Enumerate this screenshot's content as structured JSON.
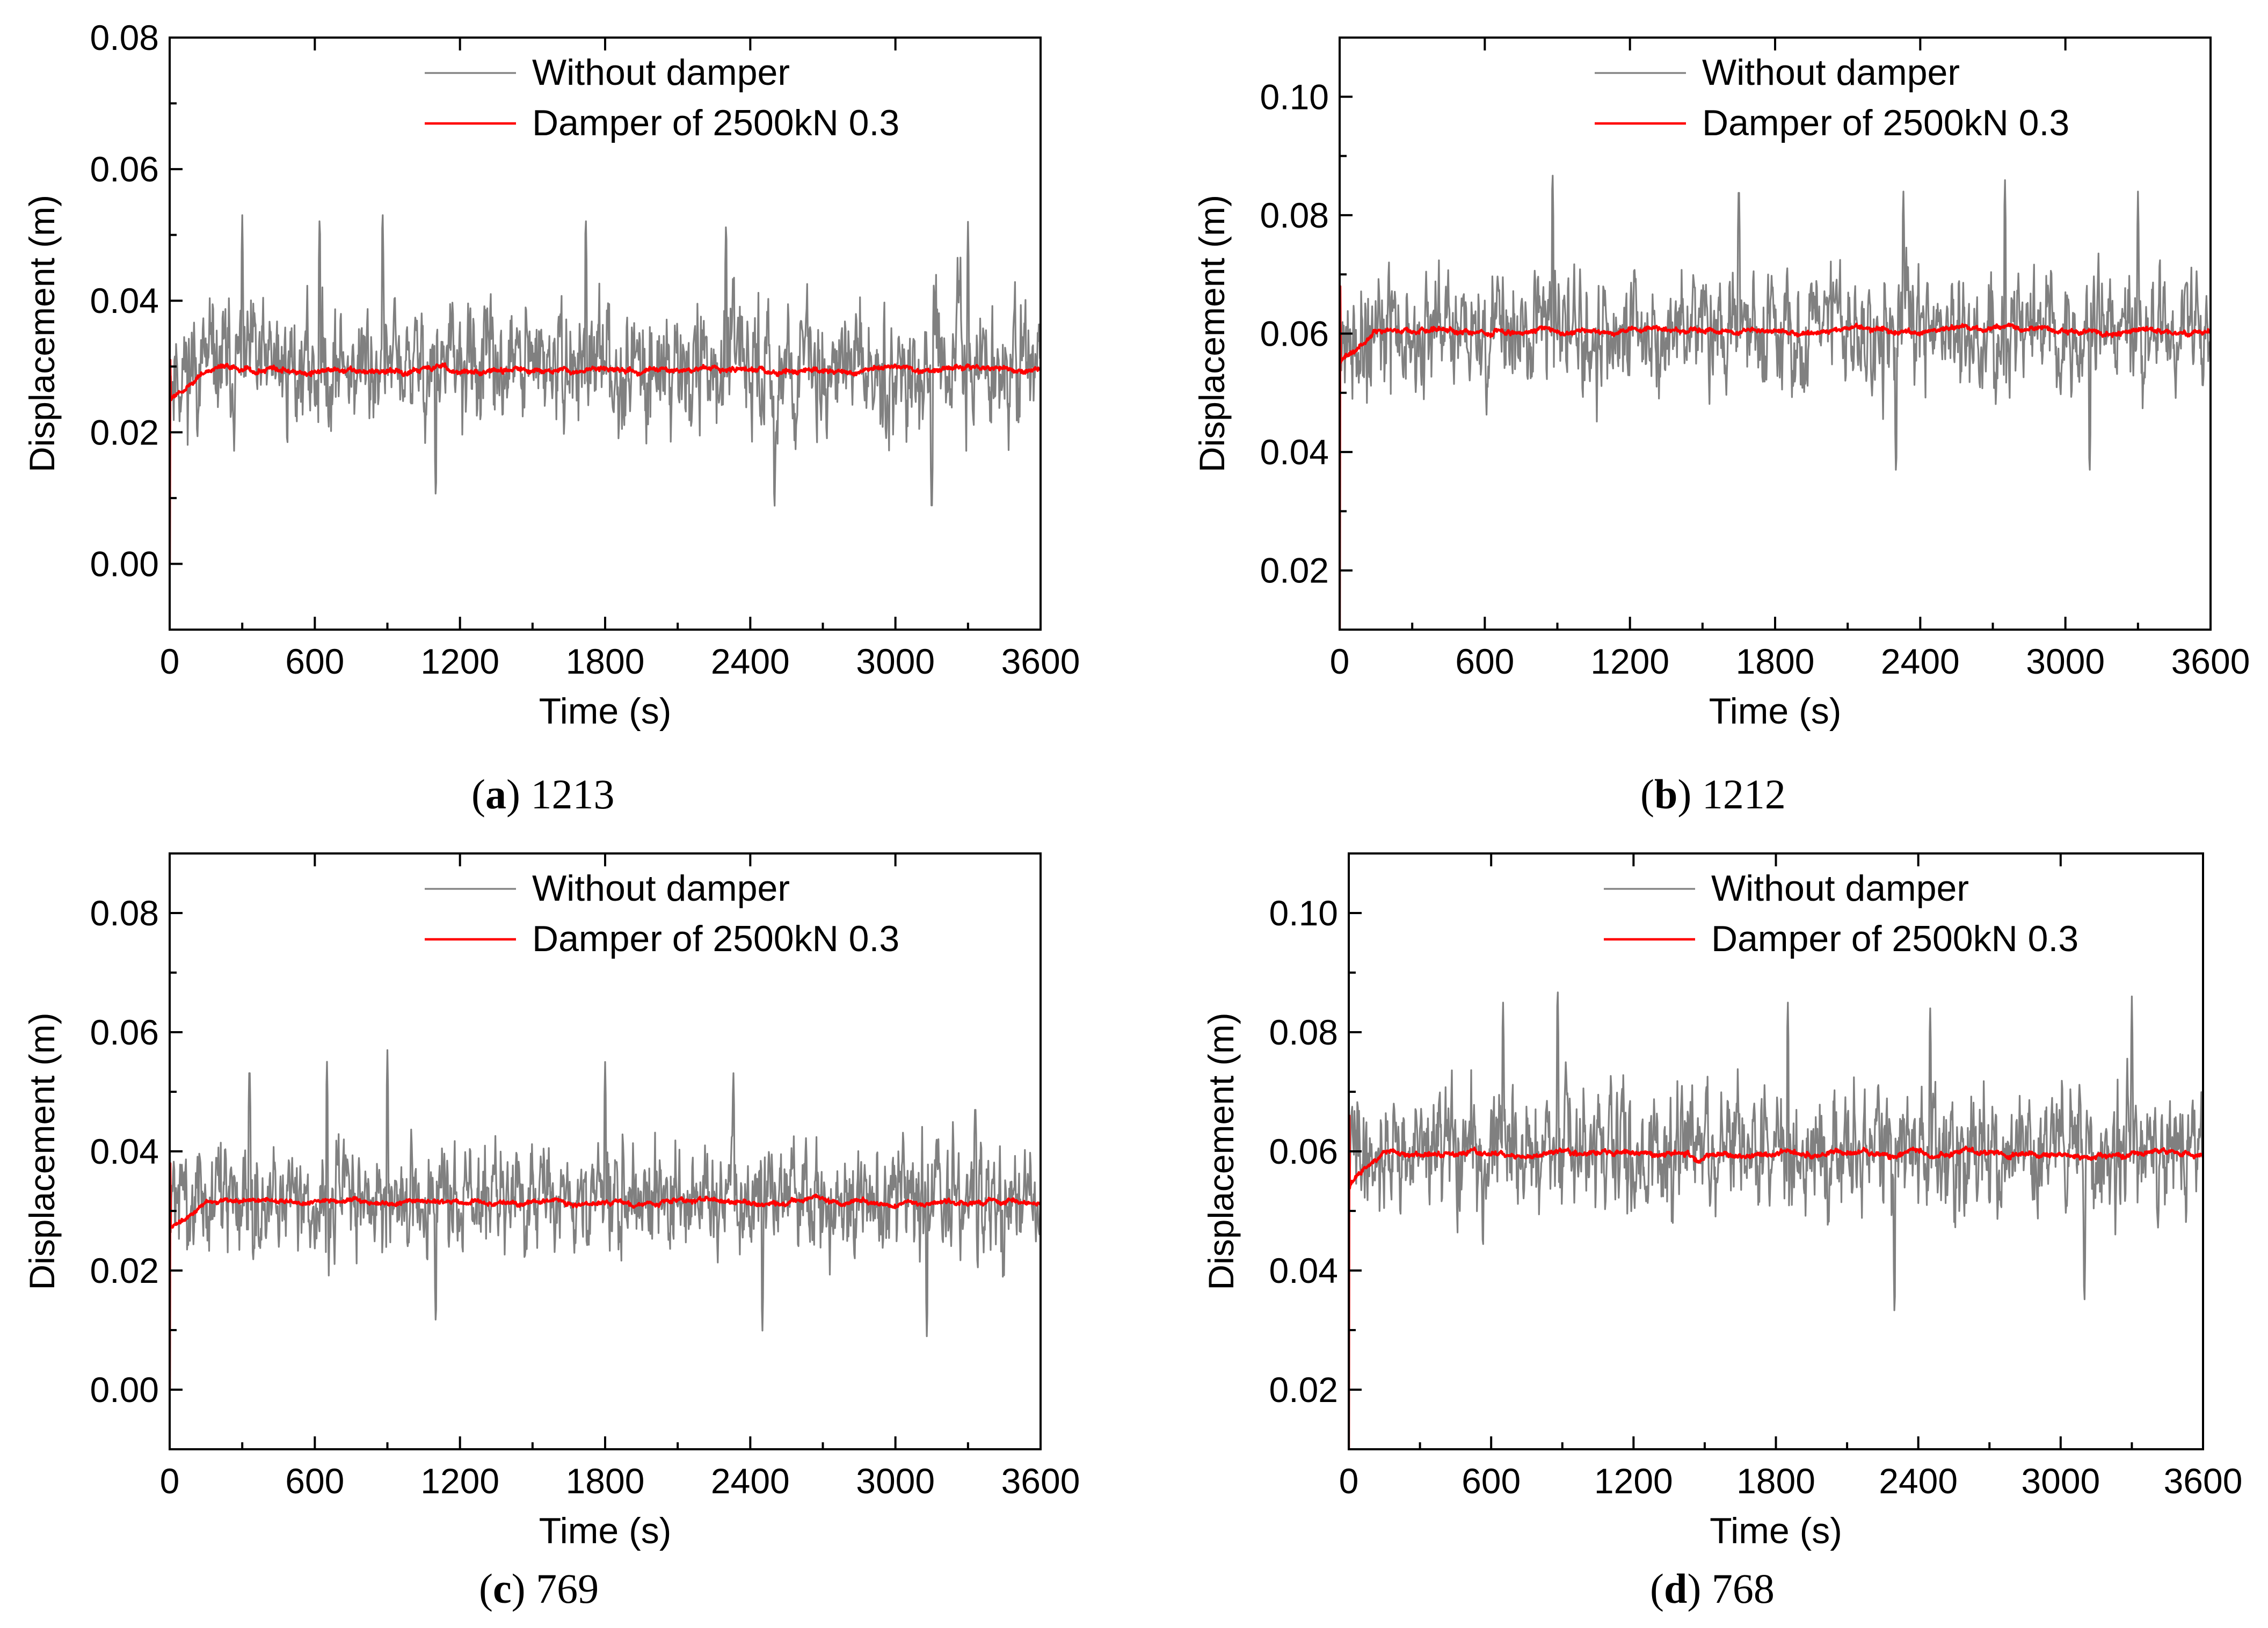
{
  "chart_data": [
    {
      "type": "line",
      "caption": {
        "letter": "a",
        "label": "1213"
      },
      "xlabel": "Time (s)",
      "ylabel": "Displacement (m)",
      "xlim": [
        0,
        3600
      ],
      "ylim": [
        -0.01,
        0.08
      ],
      "xticks": [
        0,
        600,
        1200,
        1800,
        2400,
        3000,
        3600
      ],
      "yticks": [
        "0.00",
        "0.02",
        "0.04",
        "0.06",
        "0.08"
      ],
      "legend_position": "top-center",
      "series": [
        {
          "name": "Without damper",
          "color": "#808080",
          "mean": 0.03,
          "amplitude": 0.012,
          "peaks": [
            [
              300,
              0.053
            ],
            [
              620,
              0.054
            ],
            [
              880,
              0.055
            ],
            [
              1100,
              0.009
            ],
            [
              1720,
              0.054
            ],
            [
              2300,
              0.053
            ],
            [
              2500,
              0.007
            ],
            [
              3150,
              0.006
            ],
            [
              3300,
              0.052
            ]
          ],
          "seed": 11,
          "startValue": 0.0
        },
        {
          "name": "Damper of 2500kN 0.3",
          "color": "#ff0000",
          "mean": 0.0295,
          "amplitude": 0.0012,
          "startValue": 0.0,
          "spikeValue": 0.031,
          "settleValue": 0.025,
          "seed": 12
        }
      ]
    },
    {
      "type": "line",
      "caption": {
        "letter": "b",
        "label": "1212"
      },
      "xlabel": "Time (s)",
      "ylabel": "Displacement (m)",
      "xlim": [
        0,
        3600
      ],
      "ylim": [
        0.01,
        0.11
      ],
      "xticks": [
        0,
        600,
        1200,
        1800,
        2400,
        3000,
        3600
      ],
      "yticks": [
        "0.02",
        "0.04",
        "0.06",
        "0.08",
        "0.10"
      ],
      "legend_position": "top-center",
      "series": [
        {
          "name": "Without damper",
          "color": "#808080",
          "mean": 0.06,
          "amplitude": 0.013,
          "peaks": [
            [
              880,
              0.089
            ],
            [
              1650,
              0.087
            ],
            [
              2300,
              0.035
            ],
            [
              2330,
              0.085
            ],
            [
              2750,
              0.087
            ],
            [
              3100,
              0.035
            ],
            [
              3300,
              0.084
            ]
          ],
          "seed": 21,
          "startValue": 0.01
        },
        {
          "name": "Damper of 2500kN 0.3",
          "color": "#ff0000",
          "mean": 0.0605,
          "amplitude": 0.0013,
          "startValue": 0.01,
          "spikeValue": 0.068,
          "settleValue": 0.055,
          "seed": 22
        }
      ]
    },
    {
      "type": "line",
      "caption": {
        "letter": "c",
        "label": "769"
      },
      "xlabel": "Time (s)",
      "ylabel": "Displacement (m)",
      "xlim": [
        0,
        3600
      ],
      "ylim": [
        -0.01,
        0.09
      ],
      "xticks": [
        0,
        600,
        1200,
        1800,
        2400,
        3000,
        3600
      ],
      "yticks": [
        "0.00",
        "0.02",
        "0.04",
        "0.06",
        "0.08"
      ],
      "legend_position": "top-center",
      "series": [
        {
          "name": "Without damper",
          "color": "#808080",
          "mean": 0.032,
          "amplitude": 0.012,
          "peaks": [
            [
              330,
              0.056
            ],
            [
              650,
              0.056
            ],
            [
              900,
              0.057
            ],
            [
              1100,
              0.01
            ],
            [
              1800,
              0.055
            ],
            [
              2330,
              0.054
            ],
            [
              2450,
              0.009
            ],
            [
              3130,
              0.008
            ],
            [
              3330,
              0.049
            ]
          ],
          "seed": 31,
          "startValue": 0.0
        },
        {
          "name": "Damper of 2500kN 0.3",
          "color": "#ff0000",
          "mean": 0.0315,
          "amplitude": 0.0012,
          "startValue": 0.0,
          "spikeValue": 0.038,
          "settleValue": 0.027,
          "seed": 32
        }
      ]
    },
    {
      "type": "line",
      "caption": {
        "letter": "d",
        "label": "768"
      },
      "xlabel": "Time (s)",
      "ylabel": "Displacement (m)",
      "xlim": [
        0,
        3600
      ],
      "ylim": [
        0.01,
        0.11
      ],
      "xticks": [
        0,
        600,
        1200,
        1800,
        2400,
        3000,
        3600
      ],
      "yticks": [
        "0.02",
        "0.04",
        "0.06",
        "0.08",
        "0.10"
      ],
      "legend_position": "top-center",
      "series": [
        {
          "name": "Without damper",
          "color": "#808080",
          "mean": 0.06,
          "amplitude": 0.013,
          "peaks": [
            [
              650,
              0.086
            ],
            [
              880,
              0.089
            ],
            [
              1850,
              0.086
            ],
            [
              2300,
              0.031
            ],
            [
              2450,
              0.085
            ],
            [
              3100,
              0.033
            ],
            [
              3300,
              0.086
            ]
          ],
          "seed": 41,
          "startValue": 0.01
        },
        {
          "name": "Damper of 2500kN 0.3",
          "color": "#ff0000",
          "mean": 0.0595,
          "amplitude": 0.0013,
          "startValue": 0.01,
          "spikeValue": 0.066,
          "settleValue": 0.054,
          "seed": 42
        }
      ]
    }
  ]
}
